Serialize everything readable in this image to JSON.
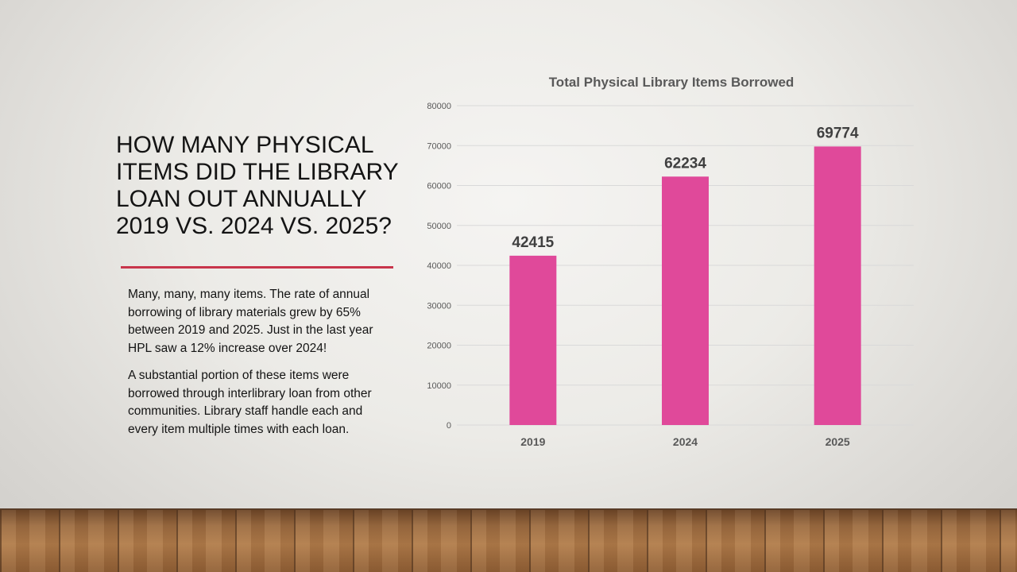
{
  "slide": {
    "title": "HOW MANY PHYSICAL ITEMS DID THE LIBRARY LOAN OUT ANNUALLY 2019 VS. 2024 VS. 2025?",
    "paragraphs": [
      "Many, many, many items. The rate of annual borrowing of library materials grew by 65% between 2019 and 2025. Just in the last year HPL saw a 12% increase over 2024!",
      "A substantial portion of these items were borrowed through interlibrary loan from other communities. Library staff handle each and every item multiple times with each loan."
    ],
    "accent_color": "#c8354b"
  },
  "chart_data": {
    "type": "bar",
    "title": "Total Physical Library Items Borrowed",
    "categories": [
      "2019",
      "2024",
      "2025"
    ],
    "values": [
      42415,
      62234,
      69774
    ],
    "data_labels": [
      "42415",
      "62234",
      "69774"
    ],
    "ylim": [
      0,
      80000
    ],
    "yticks": [
      0,
      10000,
      20000,
      30000,
      40000,
      50000,
      60000,
      70000,
      80000
    ],
    "ytick_labels": [
      "0",
      "10000",
      "20000",
      "30000",
      "40000",
      "50000",
      "60000",
      "70000",
      "80000"
    ],
    "xlabel": "",
    "ylabel": "",
    "grid": true,
    "bar_color": "#e0499a",
    "grid_color": "#d9d9d9",
    "label_color": "#404040",
    "tick_color": "#595959"
  }
}
